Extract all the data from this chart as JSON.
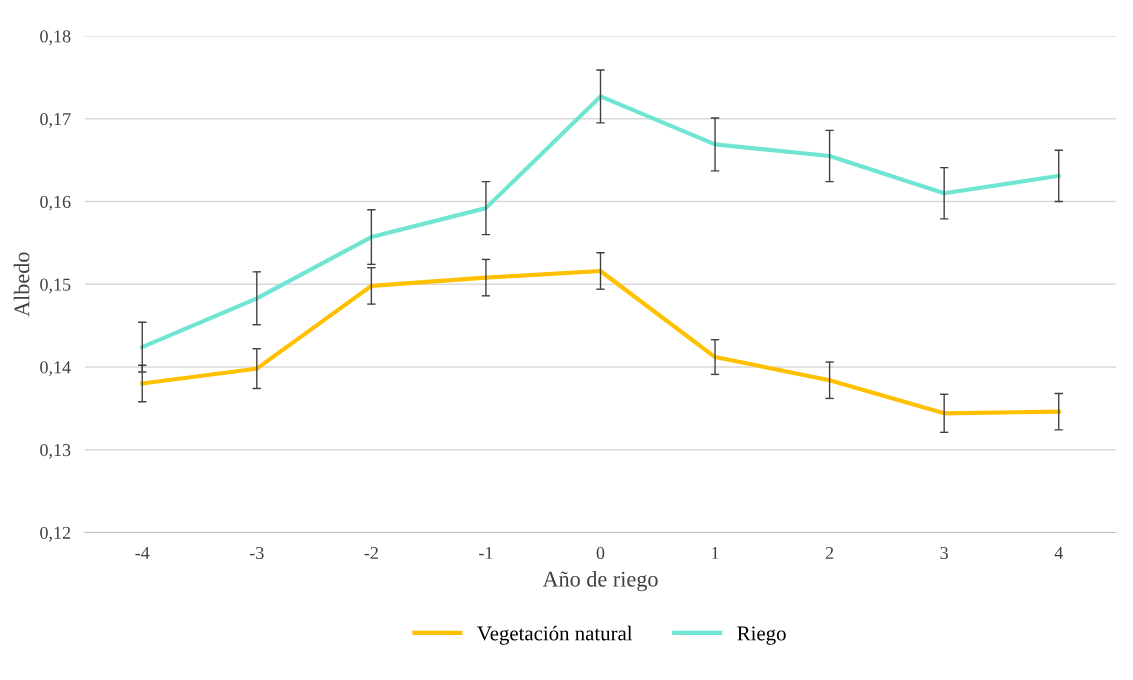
{
  "chart_data": {
    "type": "line",
    "xlabel": "Año de riego",
    "ylabel": "Albedo",
    "categories": [
      "-4",
      "-3",
      "-2",
      "-1",
      "0",
      "1",
      "2",
      "3",
      "4"
    ],
    "series": [
      {
        "name": "Vegetación natural",
        "color": "#ffc000",
        "values": [
          0.138,
          0.1398,
          0.1498,
          0.1508,
          0.1516,
          0.1412,
          0.1384,
          0.1344,
          0.1346
        ],
        "errors": [
          0.0022,
          0.0024,
          0.0022,
          0.0022,
          0.0022,
          0.0021,
          0.0022,
          0.0023,
          0.0022
        ]
      },
      {
        "name": "Riego",
        "color": "#70e6d2",
        "values": [
          0.1424,
          0.1483,
          0.1557,
          0.1592,
          0.1727,
          0.1669,
          0.1655,
          0.161,
          0.1631
        ],
        "errors": [
          0.003,
          0.0032,
          0.0033,
          0.0032,
          0.0032,
          0.0032,
          0.0031,
          0.0031,
          0.0031
        ]
      }
    ],
    "ylim": [
      0.12,
      0.18
    ],
    "yticks": [
      {
        "value": 0.12,
        "label": "0,12"
      },
      {
        "value": 0.13,
        "label": "0,13"
      },
      {
        "value": 0.14,
        "label": "0,14"
      },
      {
        "value": 0.15,
        "label": "0,15"
      },
      {
        "value": 0.16,
        "label": "0,16"
      },
      {
        "value": 0.17,
        "label": "0,17"
      },
      {
        "value": 0.18,
        "label": "0,18"
      }
    ],
    "grid": "y",
    "legend": "bottom",
    "marker": "none",
    "line_style": "solid"
  }
}
